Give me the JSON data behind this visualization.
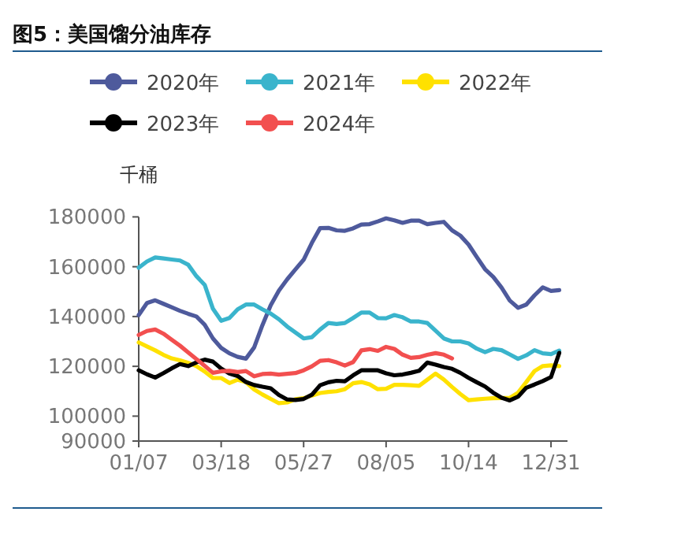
{
  "chart_data": {
    "type": "line",
    "title": "图5：美国馏分油库存",
    "ylabel": "千桶",
    "legend": "top",
    "categories": [
      "01/07",
      null,
      null,
      null,
      null,
      null,
      null,
      null,
      null,
      null,
      "03/18",
      null,
      null,
      null,
      null,
      null,
      null,
      null,
      null,
      null,
      "05/27",
      null,
      null,
      null,
      null,
      null,
      null,
      null,
      null,
      null,
      "08/05",
      null,
      null,
      null,
      null,
      null,
      null,
      null,
      null,
      null,
      "10/14",
      null,
      null,
      null,
      null,
      null,
      null,
      null,
      null,
      null,
      "12/31",
      null
    ],
    "ylim": [
      90000,
      180000
    ],
    "yticks": [
      90000,
      100000,
      120000,
      140000,
      160000,
      180000
    ],
    "series": [
      {
        "name": "2020年",
        "color": "#4e5a9c",
        "values": [
          140600,
          145400,
          146500,
          145100,
          143700,
          142300,
          141100,
          140000,
          136700,
          131200,
          127400,
          125200,
          123800,
          123100,
          127600,
          136500,
          144500,
          150400,
          154900,
          158900,
          162800,
          169600,
          175500,
          175600,
          174600,
          174400,
          175400,
          176900,
          177100,
          178200,
          179400,
          178600,
          177600,
          178500,
          178500,
          177100,
          177600,
          178000,
          174600,
          172500,
          168900,
          163900,
          159000,
          155900,
          151600,
          146400,
          143500,
          144800,
          148500,
          151700,
          150300,
          150600
        ]
      },
      {
        "name": "2021年",
        "color": "#3ab4cc",
        "values": [
          159600,
          162100,
          163700,
          163300,
          162900,
          162500,
          160800,
          156200,
          152700,
          143100,
          138300,
          139400,
          142900,
          144800,
          144800,
          142900,
          141200,
          138900,
          136000,
          133600,
          131200,
          131700,
          134800,
          137400,
          137000,
          137400,
          139400,
          141600,
          141600,
          139400,
          139300,
          140600,
          139700,
          138000,
          138000,
          137400,
          134300,
          131200,
          130000,
          130000,
          129200,
          127100,
          125700,
          127000,
          126500,
          124800,
          123000,
          124400,
          126500,
          125200,
          124900,
          126300
        ]
      },
      {
        "name": "2022年",
        "color": "#ffe100",
        "values": [
          129600,
          128000,
          126400,
          124600,
          123200,
          122400,
          121400,
          120100,
          117900,
          115300,
          115300,
          113300,
          114600,
          113700,
          110700,
          108700,
          106900,
          105200,
          105500,
          106800,
          107200,
          108300,
          109300,
          109700,
          110000,
          110800,
          113200,
          113700,
          112800,
          110800,
          111000,
          112600,
          112600,
          112400,
          112200,
          114600,
          117100,
          114700,
          111700,
          108900,
          106400,
          106700,
          107000,
          107200,
          107300,
          107300,
          109400,
          113700,
          118100,
          120100,
          120400,
          120100
        ]
      },
      {
        "name": "2023年",
        "color": "#000000",
        "values": [
          118400,
          116800,
          115500,
          117300,
          119200,
          120900,
          120100,
          121600,
          122700,
          121900,
          119100,
          117100,
          116100,
          113700,
          112500,
          111800,
          111200,
          108500,
          106700,
          106500,
          106900,
          108600,
          112400,
          113600,
          114200,
          114000,
          116400,
          118400,
          118400,
          118400,
          117200,
          116400,
          116700,
          117400,
          118200,
          121500,
          120700,
          119700,
          119000,
          117400,
          115400,
          113600,
          111900,
          109400,
          107400,
          106300,
          107800,
          111400,
          112700,
          114100,
          115700,
          125400
        ]
      },
      {
        "name": "2024年",
        "color": "#f24f4f",
        "values": [
          132600,
          134200,
          134800,
          133100,
          130700,
          128300,
          125600,
          122900,
          120200,
          117400,
          118000,
          118200,
          117700,
          118100,
          116000,
          116900,
          117100,
          116700,
          117000,
          117300,
          118400,
          120000,
          122200,
          122500,
          121600,
          120300,
          121700,
          126400,
          126900,
          126200,
          127800,
          127000,
          124700,
          123400,
          123700,
          124600,
          125300,
          124700,
          123200,
          null,
          null,
          null,
          null,
          null,
          null,
          null,
          null,
          null,
          null,
          null,
          null,
          null
        ]
      }
    ]
  }
}
